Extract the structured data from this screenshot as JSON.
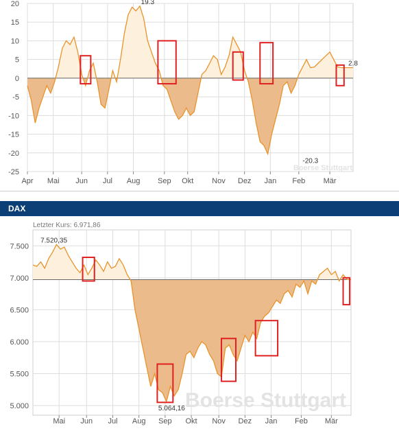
{
  "chart_data": [
    {
      "type": "area",
      "watermark": "Boerse Stuttgart",
      "x_ticks": [
        "Apr",
        "Mai",
        "Jun",
        "Jul",
        "Aug",
        "Sep",
        "Okt",
        "Nov",
        "Dez",
        "Jan",
        "Feb",
        "Mär"
      ],
      "ylim": [
        -25,
        20
      ],
      "y_ticks": [
        -25,
        -20,
        -15,
        -10,
        -5,
        0,
        5,
        10,
        15,
        20
      ],
      "y_tick_labels": [
        "-25",
        "-20",
        "-15",
        "-10",
        "-5",
        "0",
        "5",
        "10",
        "15",
        "20"
      ],
      "grid": true,
      "baseline": 0,
      "annotations": [
        {
          "label": "19.3",
          "x": 4.65,
          "y": 19.3
        },
        {
          "label": "-20.3",
          "x": 10.95,
          "y": -20.3
        },
        {
          "label": "2.8",
          "x": 12.6,
          "y": 2.8
        }
      ],
      "x": [
        0,
        0.15,
        0.3,
        0.45,
        0.6,
        0.75,
        0.9,
        1.05,
        1.2,
        1.35,
        1.5,
        1.65,
        1.8,
        1.95,
        2.1,
        2.25,
        2.4,
        2.55,
        2.7,
        2.85,
        3.0,
        3.15,
        3.3,
        3.45,
        3.6,
        3.75,
        3.9,
        4.05,
        4.2,
        4.35,
        4.5,
        4.65,
        4.8,
        4.95,
        5.1,
        5.25,
        5.4,
        5.55,
        5.7,
        5.85,
        6.0,
        6.15,
        6.3,
        6.45,
        6.6,
        6.75,
        6.9,
        7.05,
        7.2,
        7.35,
        7.5,
        7.65,
        7.8,
        7.95,
        8.1,
        8.25,
        8.4,
        8.55,
        8.7,
        8.85,
        9.0,
        9.15,
        9.3,
        9.45,
        9.6,
        9.75,
        9.9,
        10.05,
        10.2,
        10.35,
        10.5,
        10.65,
        10.8,
        10.95,
        11.1,
        11.25,
        11.4,
        11.55,
        11.7,
        11.85,
        12.0,
        12.15,
        12.3,
        12.45,
        12.6
      ],
      "values": [
        -2,
        -6,
        -12,
        -8,
        -5,
        -2,
        -4,
        -1,
        3,
        8,
        10,
        9,
        11,
        7,
        1,
        -2,
        2,
        4,
        -1,
        -7,
        -8,
        -3,
        2,
        -1,
        5,
        12,
        17,
        19,
        18,
        19.3,
        16,
        10,
        7,
        4,
        2,
        -2,
        -3,
        -6,
        -9,
        -11,
        -10,
        -8,
        -10,
        -9,
        -4,
        1,
        2,
        4,
        6,
        5,
        1,
        3,
        6,
        11,
        9,
        7,
        2,
        -1,
        -6,
        -12,
        -17,
        -18,
        -20.3,
        -15,
        -11,
        -7,
        -2,
        -1,
        -4,
        -2,
        1,
        3,
        5,
        2.8,
        3,
        4,
        5,
        6,
        7,
        5,
        3,
        2.8,
        2.8,
        2.8,
        2.8
      ],
      "highlight_boxes": [
        {
          "x0": 2.05,
          "x1": 2.45,
          "y0": -1.5,
          "y1": 6
        },
        {
          "x0": 5.05,
          "x1": 5.75,
          "y0": -1.5,
          "y1": 10
        },
        {
          "x0": 7.95,
          "x1": 8.35,
          "y0": -0.5,
          "y1": 7
        },
        {
          "x0": 9.0,
          "x1": 9.5,
          "y0": -1.5,
          "y1": 9.5
        },
        {
          "x0": 11.95,
          "x1": 12.25,
          "y0": -2,
          "y1": 3.5
        }
      ]
    },
    {
      "type": "area",
      "panel_title": "DAX",
      "subtitle": "Letzter Kurs: 6.971,86",
      "watermark": "Boerse Stuttgart",
      "x_ticks": [
        "Mai",
        "Jun",
        "Jul",
        "Aug",
        "Sep",
        "Okt",
        "Nov",
        "Dez",
        "Jan",
        "Feb",
        "Mär"
      ],
      "ylim": [
        4850,
        7750
      ],
      "y_ticks": [
        5000,
        5500,
        6000,
        6500,
        7000,
        7500
      ],
      "y_tick_labels": [
        "5.000",
        "5.500",
        "6.000",
        "6.500",
        "7.000",
        "7.500"
      ],
      "grid": true,
      "baseline": 6971.86,
      "annotations": [
        {
          "label": "7.520,35",
          "x": 0.8,
          "y": 7520.35
        },
        {
          "label": "5.064,16",
          "x": 5.3,
          "y": 5064.16
        }
      ],
      "x": [
        0,
        0.15,
        0.3,
        0.45,
        0.6,
        0.75,
        0.9,
        1.05,
        1.2,
        1.35,
        1.5,
        1.65,
        1.8,
        1.95,
        2.1,
        2.25,
        2.4,
        2.55,
        2.7,
        2.85,
        3.0,
        3.15,
        3.3,
        3.45,
        3.6,
        3.75,
        3.9,
        4.05,
        4.2,
        4.35,
        4.5,
        4.65,
        4.8,
        4.95,
        5.1,
        5.25,
        5.4,
        5.55,
        5.7,
        5.85,
        6.0,
        6.15,
        6.3,
        6.45,
        6.6,
        6.75,
        6.9,
        7.05,
        7.2,
        7.35,
        7.5,
        7.65,
        7.8,
        7.95,
        8.1,
        8.25,
        8.4,
        8.55,
        8.7,
        8.85,
        9.0,
        9.15,
        9.3,
        9.45,
        9.6,
        9.75,
        9.9,
        10.05,
        10.2,
        10.35,
        10.5,
        10.65,
        10.8,
        10.95,
        11.1,
        11.25,
        11.4,
        11.55,
        11.7,
        11.85,
        12.0,
        12.15
      ],
      "values": [
        7200,
        7180,
        7250,
        7150,
        7300,
        7400,
        7520.35,
        7450,
        7480,
        7350,
        7250,
        7150,
        7080,
        7200,
        7050,
        7150,
        7280,
        7200,
        7100,
        7250,
        7150,
        7180,
        7300,
        7200,
        7050,
        6950,
        6500,
        6200,
        5900,
        5600,
        5300,
        5500,
        5250,
        5200,
        5064.16,
        5300,
        5150,
        5250,
        5500,
        5800,
        5850,
        5750,
        5900,
        6000,
        5950,
        5800,
        5700,
        5500,
        5450,
        5900,
        5950,
        5800,
        5700,
        5900,
        6100,
        6000,
        6150,
        6050,
        6300,
        6400,
        6450,
        6550,
        6650,
        6600,
        6750,
        6800,
        6700,
        6900,
        6850,
        6950,
        6750,
        6950,
        6900,
        7050,
        7100,
        7150,
        7050,
        7100,
        6950,
        7050,
        6971.86,
        6971.86
      ],
      "highlight_boxes": [
        {
          "x0": 1.9,
          "x1": 2.35,
          "y0": 6950,
          "y1": 7320
        },
        {
          "x0": 4.75,
          "x1": 5.35,
          "y0": 5050,
          "y1": 5650
        },
        {
          "x0": 7.2,
          "x1": 7.75,
          "y0": 5380,
          "y1": 6050
        },
        {
          "x0": 8.5,
          "x1": 9.35,
          "y0": 5780,
          "y1": 6330
        },
        {
          "x0": 11.85,
          "x1": 12.1,
          "y0": 6580,
          "y1": 7000
        }
      ]
    }
  ],
  "style": {
    "fill_above": "#fdf0dc",
    "fill_below": "#ebbb8c",
    "line": "#e8932b",
    "box": "#e02020",
    "grid": "#dddddd",
    "axis": "#444444",
    "panel_header_bg": "#0c3f75"
  }
}
